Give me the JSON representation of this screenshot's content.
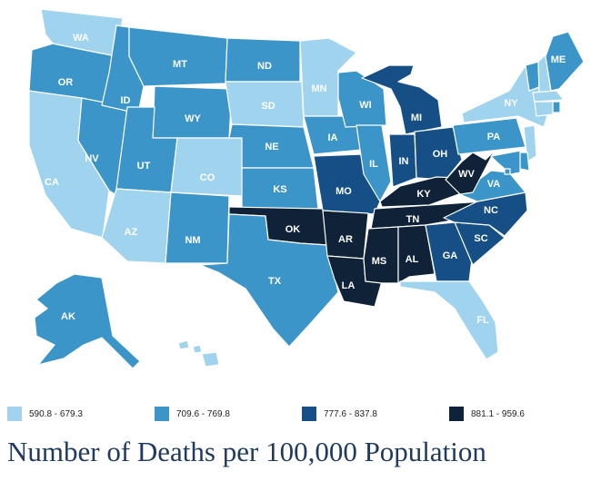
{
  "colors": {
    "c1": "#9fd3ee",
    "c2": "#3c95c9",
    "c3": "#154f86",
    "c4": "#0f2238"
  },
  "legend": [
    {
      "key": "c1",
      "label": "590.8 - 679.3"
    },
    {
      "key": "c2",
      "label": "709.6 - 769.8"
    },
    {
      "key": "c3",
      "label": "777.6 - 837.8"
    },
    {
      "key": "c4",
      "label": "881.1 - 959.6"
    }
  ],
  "title": "Number of Deaths per 100,000 Population",
  "states": {
    "WA": "c1",
    "OR": "c2",
    "CA": "c1",
    "NV": "c2",
    "ID": "c2",
    "MT": "c2",
    "WY": "c2",
    "UT": "c2",
    "CO": "c1",
    "AZ": "c1",
    "NM": "c2",
    "ND": "c2",
    "SD": "c1",
    "NE": "c2",
    "KS": "c2",
    "OK": "c4",
    "TX": "c2",
    "MN": "c1",
    "IA": "c2",
    "MO": "c3",
    "AR": "c4",
    "LA": "c4",
    "WI": "c2",
    "IL": "c2",
    "MI": "c3",
    "IN": "c3",
    "OH": "c3",
    "KY": "c4",
    "TN": "c4",
    "MS": "c4",
    "AL": "c4",
    "GA": "c3",
    "FL": "c1",
    "SC": "c3",
    "NC": "c3",
    "VA": "c2",
    "WV": "c4",
    "PA": "c2",
    "NY": "c1",
    "VT": "c2",
    "NH": "c1",
    "ME": "c2",
    "MA": "c1",
    "RI": "c2",
    "CT": "c1",
    "NJ": "c1",
    "DE": "c2",
    "MD": "c2",
    "DC": "c2",
    "AK": "c2",
    "HI": "c1"
  }
}
